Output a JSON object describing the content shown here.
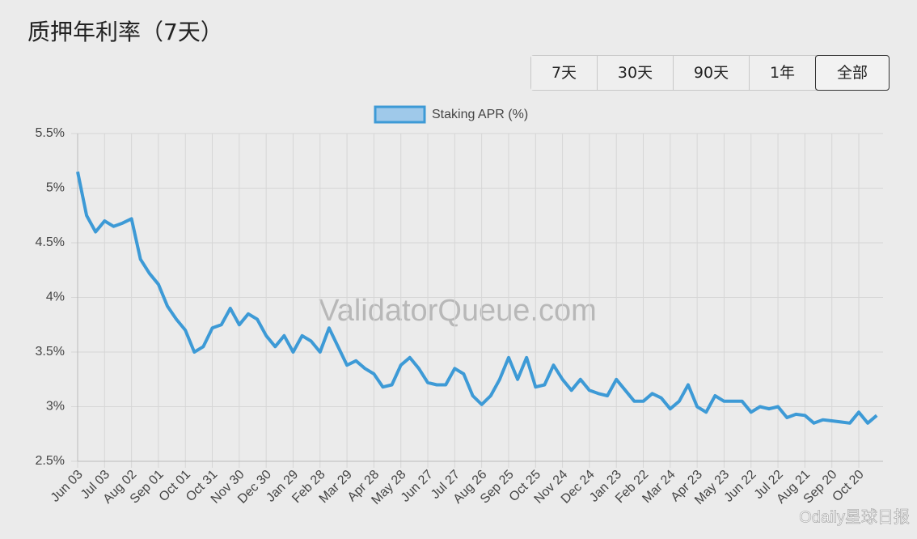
{
  "header": {
    "title": "质押年利率（7天）"
  },
  "range_buttons": [
    "7天",
    "30天",
    "90天",
    "1年",
    "全部"
  ],
  "active_button": 4,
  "watermark": "ValidatorQueue.com",
  "source_badge": "Odaily星球日报",
  "chart_data": {
    "type": "line",
    "categories": [
      "Jun 03",
      null,
      null,
      "Jul 03",
      null,
      null,
      "Aug 02",
      null,
      null,
      "Sep 01",
      null,
      null,
      "Oct 01",
      null,
      null,
      "Oct 31",
      null,
      null,
      "Nov 30",
      null,
      null,
      "Dec 30",
      null,
      null,
      "Jan 29",
      null,
      null,
      "Feb 28",
      null,
      null,
      "Mar 29",
      null,
      null,
      "Apr 28",
      null,
      null,
      "May 28",
      null,
      null,
      "Jun 27",
      null,
      null,
      "Jul 27",
      null,
      null,
      "Aug 26",
      null,
      null,
      "Sep 25",
      null,
      null,
      "Oct 25",
      null,
      null,
      "Nov 24",
      null,
      null,
      "Dec 24",
      null,
      null,
      "Jan 23",
      null,
      null,
      "Feb 22",
      null,
      null,
      "Mar 24",
      null,
      null,
      "Apr 23",
      null,
      null,
      "May 23",
      null,
      null,
      "Jun 22",
      null,
      null,
      "Jul 22",
      null,
      null,
      "Aug 21",
      null,
      null,
      "Sep 20",
      null,
      null,
      "Oct 20",
      null,
      null
    ],
    "series": [
      {
        "name": "Staking APR (%)",
        "color": "#3d9ad6",
        "values": [
          5.15,
          4.75,
          4.6,
          4.7,
          4.65,
          4.68,
          4.72,
          4.35,
          4.22,
          4.12,
          3.92,
          3.8,
          3.7,
          3.5,
          3.55,
          3.72,
          3.75,
          3.9,
          3.75,
          3.85,
          3.8,
          3.65,
          3.55,
          3.65,
          3.5,
          3.65,
          3.6,
          3.5,
          3.72,
          3.55,
          3.38,
          3.42,
          3.35,
          3.3,
          3.18,
          3.2,
          3.38,
          3.45,
          3.35,
          3.22,
          3.2,
          3.2,
          3.35,
          3.3,
          3.1,
          3.02,
          3.1,
          3.25,
          3.45,
          3.25,
          3.45,
          3.18,
          3.2,
          3.38,
          3.25,
          3.15,
          3.25,
          3.15,
          3.12,
          3.1,
          3.25,
          3.15,
          3.05,
          3.05,
          3.12,
          3.08,
          2.98,
          3.05,
          3.2,
          3.0,
          2.95,
          3.1,
          3.05,
          3.05,
          3.05,
          2.95,
          3.0,
          2.98,
          3.0,
          2.9,
          2.93,
          2.92,
          2.85,
          2.88,
          2.87,
          2.86,
          2.85,
          2.95,
          2.85,
          2.92
        ]
      }
    ],
    "ylim": [
      2.5,
      5.5
    ],
    "yticks": [
      {
        "value": 2.5,
        "label": "2.5%"
      },
      {
        "value": 3,
        "label": "3%"
      },
      {
        "value": 3.5,
        "label": "3.5%"
      },
      {
        "value": 4,
        "label": "4%"
      },
      {
        "value": 4.5,
        "label": "4.5%"
      },
      {
        "value": 5,
        "label": "5%"
      },
      {
        "value": 5.5,
        "label": "5.5%"
      }
    ],
    "grid": true,
    "legend": "top"
  }
}
